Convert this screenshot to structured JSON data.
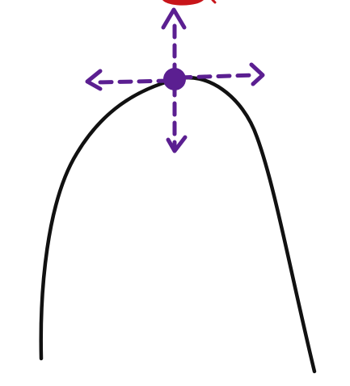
{
  "diagram": {
    "background_color": "#ffffff",
    "curve_color": "#111111",
    "point_color": "#5b1f91",
    "arrow_color": "#5b1f91",
    "top_blob_color": "#c8151a",
    "arrows": {
      "up": "arrow-up",
      "down": "arrow-down",
      "left": "arrow-left",
      "right": "arrow-right"
    }
  }
}
